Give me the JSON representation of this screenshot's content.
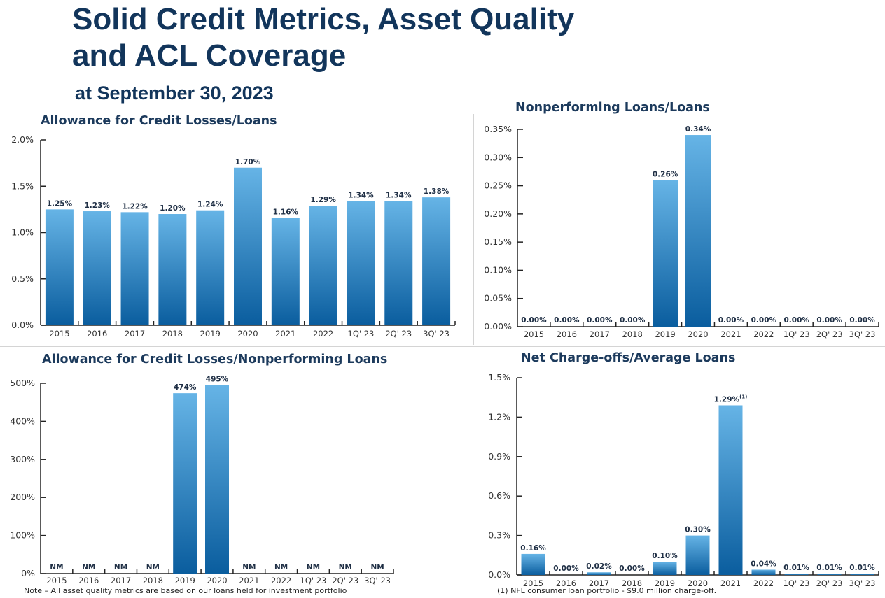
{
  "page": {
    "title_line1": "Solid Credit Metrics, Asset Quality",
    "title_line2": "and ACL Coverage",
    "subtitle": "at September 30, 2023",
    "note_left": "Note – All asset quality metrics are based on our loans held for investment portfolio",
    "note_right": "(1) NFL consumer loan portfolio - $9.0 million charge-off."
  },
  "colors": {
    "bar_top": "#66b4e6",
    "bar_bottom": "#0a5d9e",
    "title": "#12355b"
  },
  "chart_data": [
    {
      "id": "acl-loans",
      "type": "bar",
      "title": "Allowance for Credit Losses/Loans",
      "categories": [
        "2015",
        "2016",
        "2017",
        "2018",
        "2019",
        "2020",
        "2021",
        "2022",
        "1Q' 23",
        "2Q' 23",
        "3Q' 23"
      ],
      "values": [
        1.25,
        1.23,
        1.22,
        1.2,
        1.24,
        1.7,
        1.16,
        1.29,
        1.34,
        1.34,
        1.38
      ],
      "labels": [
        "1.25%",
        "1.23%",
        "1.22%",
        "1.20%",
        "1.24%",
        "1.70%",
        "1.16%",
        "1.29%",
        "1.34%",
        "1.34%",
        "1.38%"
      ],
      "yticks": [
        0,
        0.5,
        1.0,
        1.5,
        2.0
      ],
      "ytick_labels": [
        "0.0%",
        "0.5%",
        "1.0%",
        "1.5%",
        "2.0%"
      ],
      "ylim": [
        0,
        2.0
      ],
      "xlabel": "",
      "ylabel": ""
    },
    {
      "id": "npl-loans",
      "type": "bar",
      "title": "Nonperforming Loans/Loans",
      "categories": [
        "2015",
        "2016",
        "2017",
        "2018",
        "2019",
        "2020",
        "2021",
        "2022",
        "1Q' 23",
        "2Q' 23",
        "3Q' 23"
      ],
      "values": [
        0,
        0,
        0,
        0,
        0.26,
        0.34,
        0,
        0,
        0,
        0,
        0
      ],
      "labels": [
        "0.00%",
        "0.00%",
        "0.00%",
        "0.00%",
        "0.26%",
        "0.34%",
        "0.00%",
        "0.00%",
        "0.00%",
        "0.00%",
        "0.00%"
      ],
      "yticks": [
        0,
        0.05,
        0.1,
        0.15,
        0.2,
        0.25,
        0.3,
        0.35
      ],
      "ytick_labels": [
        "0.00%",
        "0.05%",
        "0.10%",
        "0.15%",
        "0.20%",
        "0.25%",
        "0.30%",
        "0.35%"
      ],
      "ylim": [
        0,
        0.35
      ],
      "xlabel": "",
      "ylabel": ""
    },
    {
      "id": "acl-npl",
      "type": "bar",
      "title": "Allowance for Credit Losses/Nonperforming Loans",
      "categories": [
        "2015",
        "2016",
        "2017",
        "2018",
        "2019",
        "2020",
        "2021",
        "2022",
        "1Q' 23",
        "2Q' 23",
        "3Q' 23"
      ],
      "values": [
        null,
        null,
        null,
        null,
        474,
        495,
        null,
        null,
        null,
        null,
        null
      ],
      "labels": [
        "NM",
        "NM",
        "NM",
        "NM",
        "474%",
        "495%",
        "NM",
        "NM",
        "NM",
        "NM",
        "NM"
      ],
      "yticks": [
        0,
        100,
        200,
        300,
        400,
        500
      ],
      "ytick_labels": [
        "0%",
        "100%",
        "200%",
        "300%",
        "400%",
        "500%"
      ],
      "ylim": [
        0,
        500
      ],
      "xlabel": "",
      "ylabel": ""
    },
    {
      "id": "nco-avg",
      "type": "bar",
      "title": "Net Charge-offs/Average Loans",
      "categories": [
        "2015",
        "2016",
        "2017",
        "2018",
        "2019",
        "2020",
        "2021",
        "2022",
        "1Q' 23",
        "2Q' 23",
        "3Q' 23"
      ],
      "values": [
        0.16,
        0,
        0.02,
        0,
        0.1,
        0.3,
        1.29,
        0.04,
        0.01,
        0.01,
        0.01
      ],
      "labels": [
        "0.16%",
        "0.00%",
        "0.02%",
        "0.00%",
        "0.10%",
        "0.30%",
        "1.29%",
        "0.04%",
        "0.01%",
        "0.01%",
        "0.01%"
      ],
      "label_superscripts": [
        "",
        "",
        "",
        "",
        "",
        "",
        "(1)",
        "",
        "",
        "",
        ""
      ],
      "yticks": [
        0,
        0.3,
        0.6,
        0.9,
        1.2,
        1.5
      ],
      "ytick_labels": [
        "0.0%",
        "0.3%",
        "0.6%",
        "0.9%",
        "1.2%",
        "1.5%"
      ],
      "ylim": [
        0,
        1.5
      ],
      "xlabel": "",
      "ylabel": ""
    }
  ]
}
